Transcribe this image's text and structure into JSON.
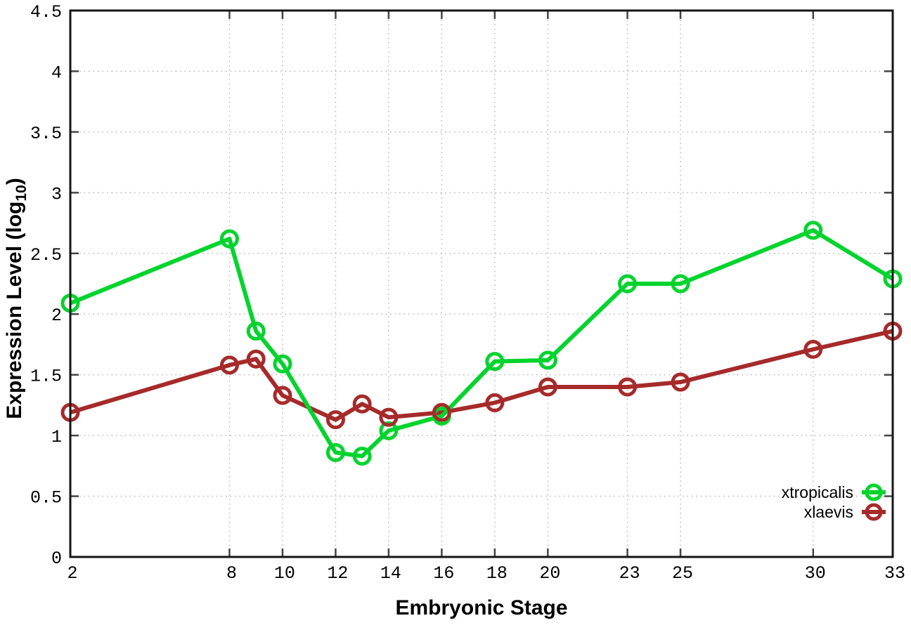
{
  "colors": {
    "background": "#ffffff",
    "grid": "#b5b5b5",
    "border": "#151515",
    "tick": "#444444",
    "text": "#000000",
    "xtropicalis": "#00d42d",
    "xlaevis": "#a62a2a"
  },
  "chart_data": {
    "type": "line",
    "title": "",
    "xlabel": "Embryonic Stage",
    "ylabel": "Expression Level (log10)",
    "ylabel_parts": {
      "prefix": "Expression Level (log",
      "subscript": "10",
      "suffix": ")"
    },
    "x": [
      2,
      8,
      9,
      10,
      12,
      13,
      14,
      16,
      18,
      20,
      23,
      25,
      30,
      33
    ],
    "xlim": [
      2,
      33
    ],
    "ylim": [
      0,
      4.5
    ],
    "xticks": [
      2,
      8,
      10,
      12,
      14,
      16,
      18,
      20,
      23,
      25,
      30,
      33
    ],
    "xtick_labels": [
      "2",
      "8",
      "10",
      "12",
      "14",
      "16",
      "18",
      "20",
      "23",
      "25",
      "30",
      "33"
    ],
    "yticks": [
      0,
      0.5,
      1,
      1.5,
      2,
      2.5,
      3,
      3.5,
      4,
      4.5
    ],
    "ytick_labels": [
      "0",
      "0.5",
      "1",
      "1.5",
      "2",
      "2.5",
      "3",
      "3.5",
      "4",
      "4.5"
    ],
    "grid": true,
    "legend_position": "bottom-right",
    "series": [
      {
        "name": "xtropicalis",
        "color": "#00d42d",
        "values": [
          2.09,
          2.62,
          1.86,
          1.59,
          0.86,
          0.83,
          1.04,
          1.16,
          1.61,
          1.62,
          2.25,
          2.25,
          2.69,
          2.29
        ]
      },
      {
        "name": "xlaevis",
        "color": "#a62a2a",
        "values": [
          1.19,
          1.58,
          1.63,
          1.33,
          1.13,
          1.26,
          1.15,
          1.19,
          1.27,
          1.4,
          1.4,
          1.44,
          1.71,
          1.86
        ]
      }
    ]
  }
}
